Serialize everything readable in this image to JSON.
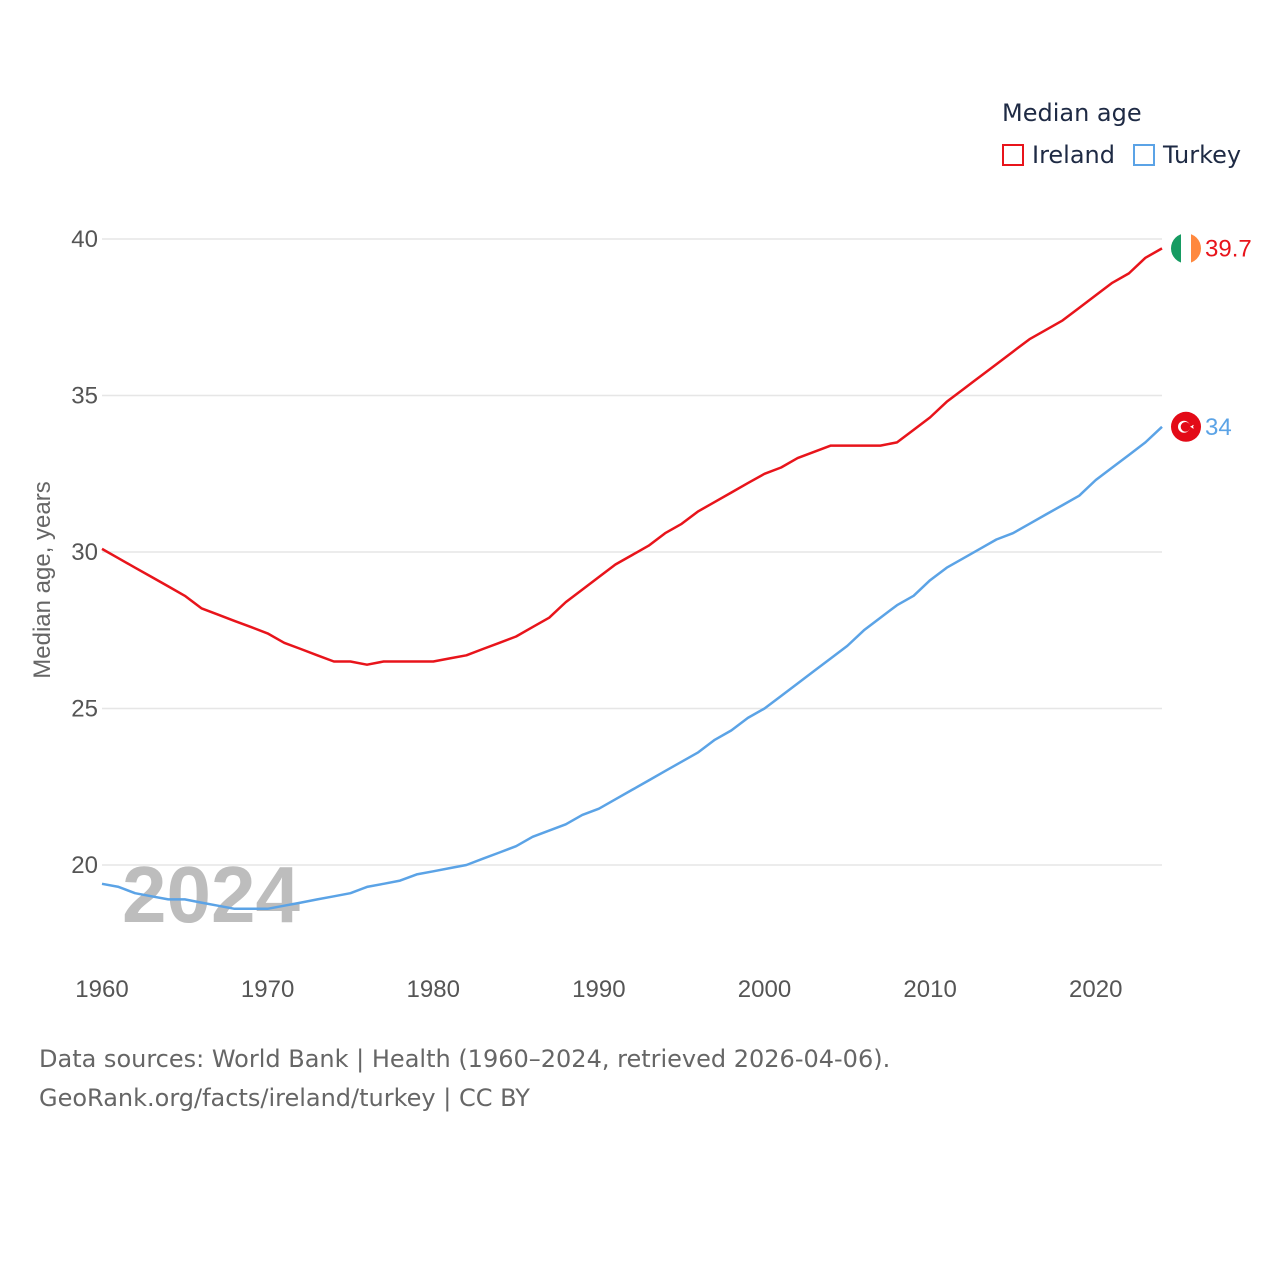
{
  "legend": {
    "title": "Median age"
  },
  "footer": {
    "line1": "Data sources: World Bank | Health (1960–2024, retrieved 2026-04-06).",
    "line2": "GeoRank.org/facts/ireland/turkey | CC BY"
  },
  "colors": {
    "ireland": "#e8141b",
    "turkey": "#5ba3e6",
    "grid": "#e6e6e6",
    "axis_text": "#555555",
    "watermark": "#bdbdbd"
  },
  "chart_data": {
    "type": "line",
    "title": "Median age",
    "xlabel": "",
    "ylabel": "Median age, years",
    "xlim": [
      1960,
      2024
    ],
    "ylim": [
      17,
      41
    ],
    "x_ticks": [
      1960,
      1970,
      1980,
      1990,
      2000,
      2010,
      2020
    ],
    "y_ticks": [
      20,
      25,
      30,
      35,
      40
    ],
    "year_watermark": "2024",
    "x": [
      1960,
      1961,
      1962,
      1963,
      1964,
      1965,
      1966,
      1967,
      1968,
      1969,
      1970,
      1971,
      1972,
      1973,
      1974,
      1975,
      1976,
      1977,
      1978,
      1979,
      1980,
      1981,
      1982,
      1983,
      1984,
      1985,
      1986,
      1987,
      1988,
      1989,
      1990,
      1991,
      1992,
      1993,
      1994,
      1995,
      1996,
      1997,
      1998,
      1999,
      2000,
      2001,
      2002,
      2003,
      2004,
      2005,
      2006,
      2007,
      2008,
      2009,
      2010,
      2011,
      2012,
      2013,
      2014,
      2015,
      2016,
      2017,
      2018,
      2019,
      2020,
      2021,
      2022,
      2023,
      2024
    ],
    "series": [
      {
        "name": "Ireland",
        "color": "#e8141b",
        "end_label": "39.7",
        "flag": "ireland-flag",
        "values": [
          30.1,
          29.8,
          29.5,
          29.2,
          28.9,
          28.6,
          28.2,
          28.0,
          27.8,
          27.6,
          27.4,
          27.1,
          26.9,
          26.7,
          26.5,
          26.5,
          26.4,
          26.5,
          26.5,
          26.5,
          26.5,
          26.6,
          26.7,
          26.9,
          27.1,
          27.3,
          27.6,
          27.9,
          28.4,
          28.8,
          29.2,
          29.6,
          29.9,
          30.2,
          30.6,
          30.9,
          31.3,
          31.6,
          31.9,
          32.2,
          32.5,
          32.7,
          33.0,
          33.2,
          33.4,
          33.4,
          33.4,
          33.4,
          33.5,
          33.9,
          34.3,
          34.8,
          35.2,
          35.6,
          36.0,
          36.4,
          36.8,
          37.1,
          37.4,
          37.8,
          38.2,
          38.6,
          38.9,
          39.4,
          39.7
        ]
      },
      {
        "name": "Turkey",
        "color": "#5ba3e6",
        "end_label": "34",
        "flag": "turkey-flag",
        "values": [
          19.4,
          19.3,
          19.1,
          19.0,
          18.9,
          18.9,
          18.8,
          18.7,
          18.6,
          18.6,
          18.6,
          18.7,
          18.8,
          18.9,
          19.0,
          19.1,
          19.3,
          19.4,
          19.5,
          19.7,
          19.8,
          19.9,
          20.0,
          20.2,
          20.4,
          20.6,
          20.9,
          21.1,
          21.3,
          21.6,
          21.8,
          22.1,
          22.4,
          22.7,
          23.0,
          23.3,
          23.6,
          24.0,
          24.3,
          24.7,
          25.0,
          25.4,
          25.8,
          26.2,
          26.6,
          27.0,
          27.5,
          27.9,
          28.3,
          28.6,
          29.1,
          29.5,
          29.8,
          30.1,
          30.4,
          30.6,
          30.9,
          31.2,
          31.5,
          31.8,
          32.3,
          32.7,
          33.1,
          33.5,
          34.0
        ]
      }
    ]
  }
}
